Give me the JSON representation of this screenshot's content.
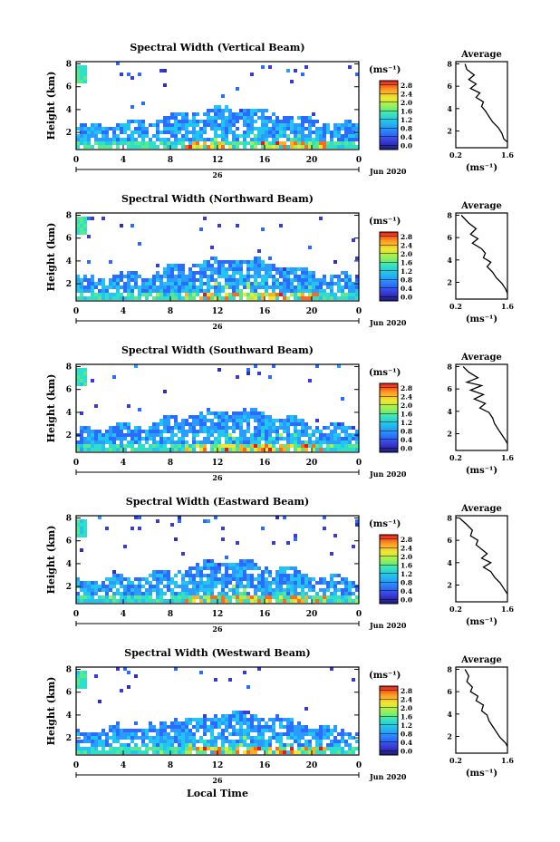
{
  "figure": {
    "date_label": "Jun 2020",
    "day_label": "26",
    "xlabel": "Local Time",
    "ylabel": "Height (km)",
    "colorbar_unit": "(ms⁻¹)",
    "profile_title": "Average",
    "profile_xlabel": "(ms⁻¹)"
  },
  "chart_data": [
    {
      "type": "heatmap",
      "title": "Spectral Width (Vertical Beam)",
      "beam": "vertical",
      "x_ticks": [
        "0",
        "4",
        "8",
        "12",
        "16",
        "20",
        "0"
      ],
      "y_ticks": [
        "2",
        "4",
        "6",
        "8"
      ],
      "xlim": [
        0,
        24
      ],
      "ylim": [
        0.5,
        8.2
      ],
      "colorbar": {
        "ticks": [
          "0.0",
          "0.4",
          "0.8",
          "1.2",
          "1.6",
          "2.0",
          "2.4",
          "2.8"
        ],
        "range": [
          0,
          2.8
        ]
      },
      "profile": {
        "title": "Average",
        "x_ticks": [
          "0.2",
          "1.6"
        ],
        "xlim": [
          0.2,
          1.6
        ],
        "y_ticks": [
          "2",
          "4",
          "6",
          "8"
        ],
        "ylim": [
          0.5,
          8.2
        ],
        "points": [
          [
            0.45,
            8.0
          ],
          [
            0.5,
            7.5
          ],
          [
            0.7,
            7.0
          ],
          [
            0.55,
            6.6
          ],
          [
            0.75,
            6.2
          ],
          [
            0.6,
            5.8
          ],
          [
            0.85,
            5.4
          ],
          [
            0.75,
            5.0
          ],
          [
            0.95,
            4.6
          ],
          [
            0.9,
            4.2
          ],
          [
            1.0,
            3.8
          ],
          [
            1.1,
            3.3
          ],
          [
            1.2,
            2.8
          ],
          [
            1.35,
            2.3
          ],
          [
            1.45,
            1.8
          ],
          [
            1.5,
            1.3
          ],
          [
            1.6,
            1.0
          ]
        ]
      }
    },
    {
      "type": "heatmap",
      "title": "Spectral Width (Northward Beam)",
      "beam": "north",
      "x_ticks": [
        "0",
        "4",
        "8",
        "12",
        "16",
        "20",
        "0"
      ],
      "y_ticks": [
        "2",
        "4",
        "6",
        "8"
      ],
      "xlim": [
        0,
        24
      ],
      "ylim": [
        0.5,
        8.2
      ],
      "colorbar": {
        "ticks": [
          "0.0",
          "0.4",
          "0.8",
          "1.2",
          "1.6",
          "2.0",
          "2.4",
          "2.8"
        ],
        "range": [
          0,
          2.8
        ]
      },
      "profile": {
        "title": "Average",
        "x_ticks": [
          "0.2",
          "1.6"
        ],
        "xlim": [
          0.2,
          1.6
        ],
        "y_ticks": [
          "2",
          "4",
          "6",
          "8"
        ],
        "ylim": [
          0.5,
          8.2
        ],
        "points": [
          [
            0.35,
            8.0
          ],
          [
            0.55,
            7.3
          ],
          [
            0.75,
            6.8
          ],
          [
            0.6,
            6.3
          ],
          [
            0.8,
            5.9
          ],
          [
            0.65,
            5.5
          ],
          [
            0.9,
            5.0
          ],
          [
            1.0,
            4.6
          ],
          [
            0.95,
            4.2
          ],
          [
            1.15,
            3.8
          ],
          [
            1.05,
            3.4
          ],
          [
            1.2,
            2.9
          ],
          [
            1.3,
            2.4
          ],
          [
            1.45,
            1.9
          ],
          [
            1.55,
            1.4
          ],
          [
            1.6,
            1.0
          ]
        ]
      }
    },
    {
      "type": "heatmap",
      "title": "Spectral Width (Southward Beam)",
      "beam": "south",
      "x_ticks": [
        "0",
        "4",
        "8",
        "12",
        "16",
        "20",
        "0"
      ],
      "y_ticks": [
        "2",
        "4",
        "6",
        "8"
      ],
      "xlim": [
        0,
        24
      ],
      "ylim": [
        0.5,
        8.2
      ],
      "colorbar": {
        "ticks": [
          "0.0",
          "0.4",
          "0.8",
          "1.2",
          "1.6",
          "2.0",
          "2.4",
          "2.8"
        ],
        "range": [
          0,
          2.8
        ]
      },
      "profile": {
        "title": "Average",
        "x_ticks": [
          "0.2",
          "1.6"
        ],
        "xlim": [
          0.2,
          1.6
        ],
        "y_ticks": [
          "2",
          "4",
          "6",
          "8"
        ],
        "ylim": [
          0.5,
          8.2
        ],
        "points": [
          [
            0.4,
            8.0
          ],
          [
            0.55,
            7.5
          ],
          [
            0.8,
            7.0
          ],
          [
            0.5,
            6.6
          ],
          [
            0.9,
            6.3
          ],
          [
            0.6,
            5.9
          ],
          [
            0.95,
            5.5
          ],
          [
            0.7,
            5.1
          ],
          [
            1.0,
            4.7
          ],
          [
            0.85,
            4.3
          ],
          [
            1.1,
            3.9
          ],
          [
            1.2,
            3.4
          ],
          [
            1.25,
            2.9
          ],
          [
            1.35,
            2.4
          ],
          [
            1.45,
            1.9
          ],
          [
            1.55,
            1.4
          ],
          [
            1.6,
            1.1
          ]
        ]
      }
    },
    {
      "type": "heatmap",
      "title": "Spectral Width (Eastward Beam)",
      "beam": "east",
      "x_ticks": [
        "0",
        "4",
        "8",
        "12",
        "16",
        "20",
        "0"
      ],
      "y_ticks": [
        "2",
        "4",
        "6",
        "8"
      ],
      "xlim": [
        0,
        24
      ],
      "ylim": [
        0.5,
        8.2
      ],
      "colorbar": {
        "ticks": [
          "0.0",
          "0.4",
          "0.8",
          "1.2",
          "1.6",
          "2.0",
          "2.4",
          "2.8"
        ],
        "range": [
          0,
          2.8
        ]
      },
      "profile": {
        "title": "Average",
        "x_ticks": [
          "0.2",
          "1.6"
        ],
        "xlim": [
          0.2,
          1.6
        ],
        "y_ticks": [
          "2",
          "4",
          "6",
          "8"
        ],
        "ylim": [
          0.5,
          8.2
        ],
        "points": [
          [
            0.3,
            8.0
          ],
          [
            0.5,
            7.4
          ],
          [
            0.65,
            6.9
          ],
          [
            0.6,
            6.4
          ],
          [
            0.8,
            6.0
          ],
          [
            0.75,
            5.6
          ],
          [
            0.9,
            5.2
          ],
          [
            1.05,
            4.8
          ],
          [
            0.9,
            4.4
          ],
          [
            1.15,
            4.0
          ],
          [
            0.95,
            3.6
          ],
          [
            1.15,
            3.2
          ],
          [
            1.25,
            2.7
          ],
          [
            1.4,
            2.2
          ],
          [
            1.5,
            1.7
          ],
          [
            1.6,
            1.2
          ]
        ]
      }
    },
    {
      "type": "heatmap",
      "title": "Spectral Width (Westward Beam)",
      "beam": "west",
      "x_ticks": [
        "0",
        "4",
        "8",
        "12",
        "16",
        "20",
        "0"
      ],
      "y_ticks": [
        "2",
        "4",
        "6",
        "8"
      ],
      "xlim": [
        0,
        24
      ],
      "ylim": [
        0.5,
        8.2
      ],
      "colorbar": {
        "ticks": [
          "0.0",
          "0.4",
          "0.8",
          "1.2",
          "1.6",
          "2.0",
          "2.4",
          "2.8"
        ],
        "range": [
          0,
          2.8
        ]
      },
      "profile": {
        "title": "Average",
        "x_ticks": [
          "0.2",
          "1.6"
        ],
        "xlim": [
          0.2,
          1.6
        ],
        "y_ticks": [
          "2",
          "4",
          "6",
          "8"
        ],
        "ylim": [
          0.5,
          8.2
        ],
        "points": [
          [
            0.45,
            8.0
          ],
          [
            0.55,
            7.4
          ],
          [
            0.5,
            6.9
          ],
          [
            0.65,
            6.4
          ],
          [
            0.6,
            6.0
          ],
          [
            0.8,
            5.6
          ],
          [
            0.75,
            5.2
          ],
          [
            0.95,
            4.8
          ],
          [
            0.9,
            4.3
          ],
          [
            1.05,
            3.9
          ],
          [
            1.1,
            3.4
          ],
          [
            1.2,
            2.9
          ],
          [
            1.3,
            2.4
          ],
          [
            1.4,
            1.9
          ],
          [
            1.55,
            1.4
          ],
          [
            1.6,
            1.1
          ]
        ]
      }
    }
  ]
}
